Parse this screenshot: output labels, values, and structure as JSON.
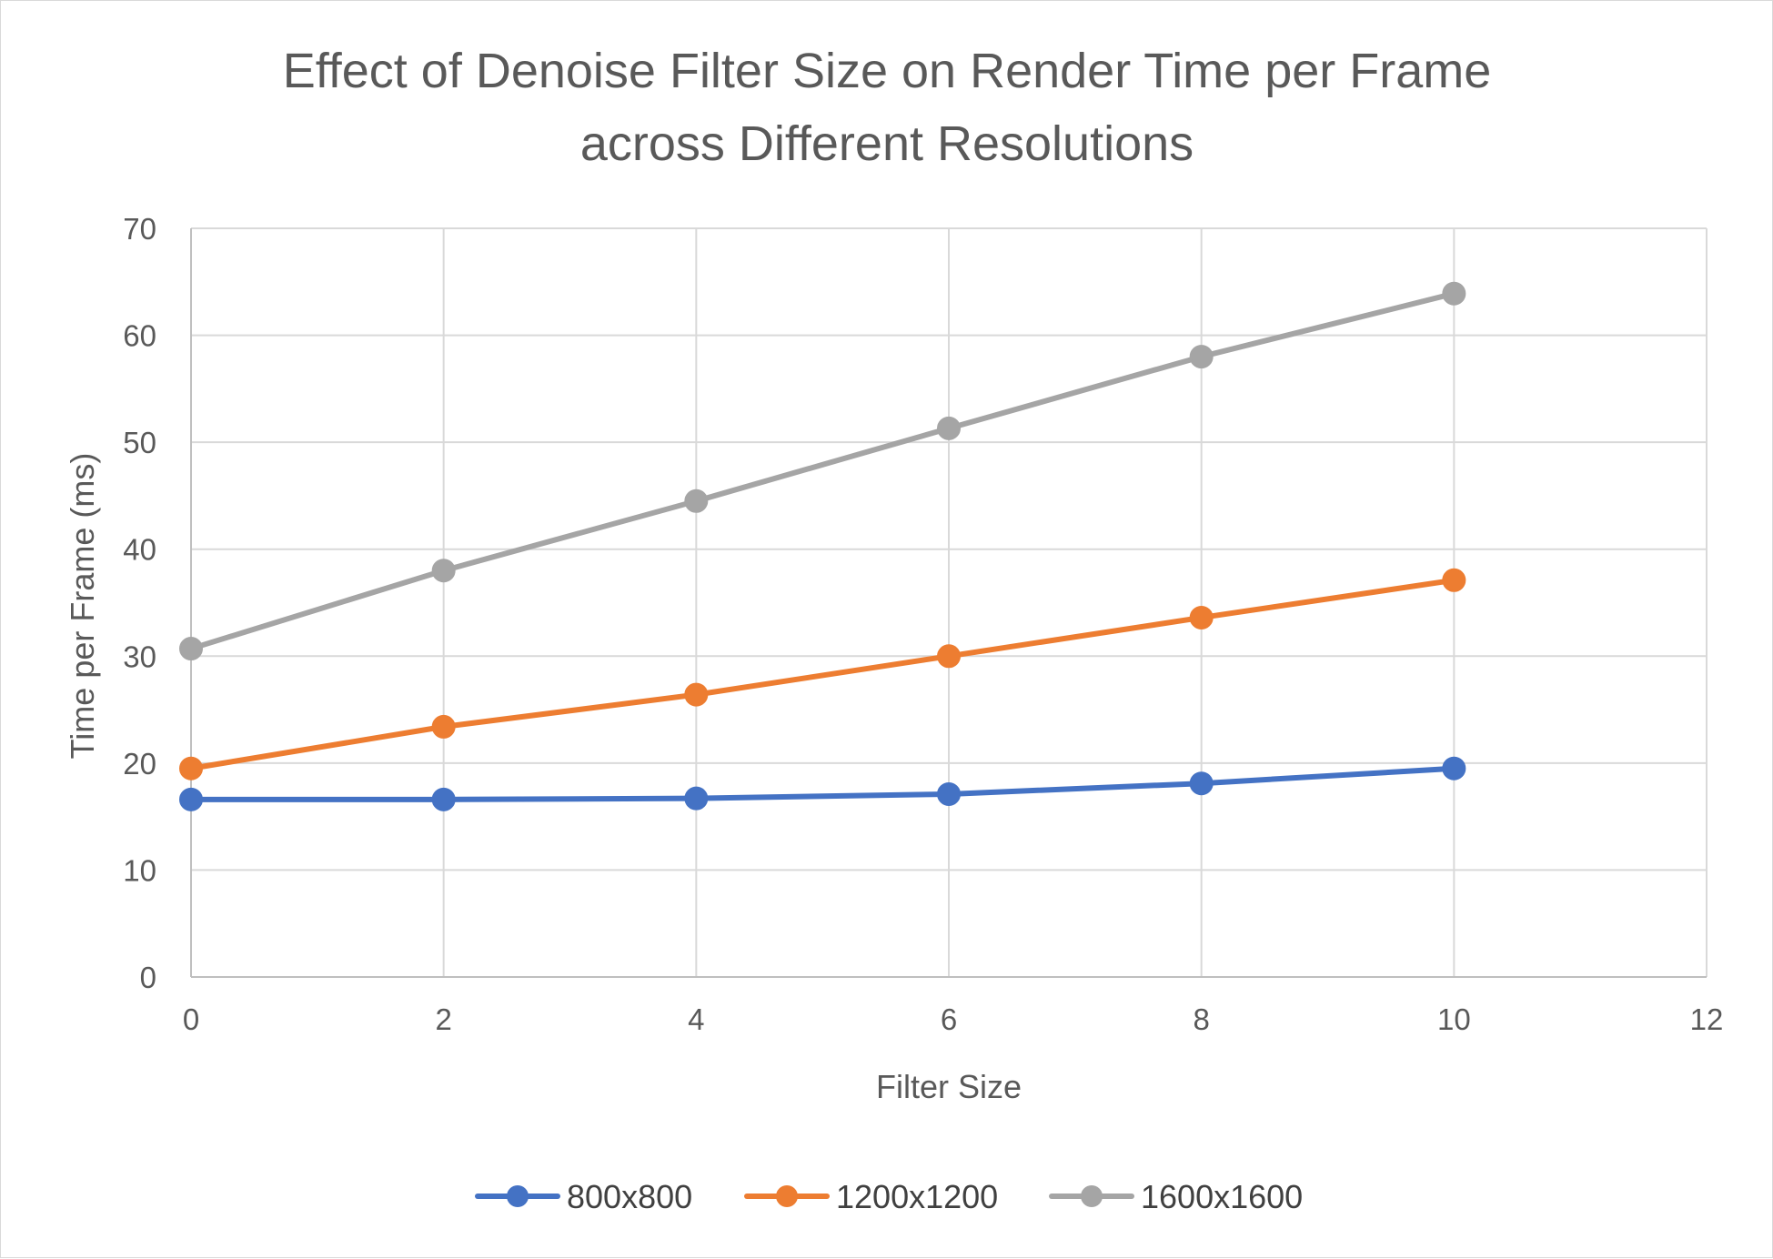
{
  "chart_data": {
    "type": "line",
    "title": "Effect of Denoise Filter Size on Render Time per Frame across Different Resolutions",
    "title_lines": [
      "Effect of Denoise Filter Size on Render Time per Frame",
      "across Different Resolutions"
    ],
    "xlabel": "Filter Size",
    "ylabel": "Time per Frame (ms)",
    "xlim": [
      0,
      12
    ],
    "ylim": [
      0,
      70
    ],
    "xticks": [
      0,
      2,
      4,
      6,
      8,
      10,
      12
    ],
    "yticks": [
      0,
      10,
      20,
      30,
      40,
      50,
      60,
      70
    ],
    "grid": true,
    "legend_position": "bottom",
    "x": [
      0,
      2,
      4,
      6,
      8,
      10
    ],
    "series": [
      {
        "name": "800x800",
        "color": "#4472C4",
        "values": [
          16.6,
          16.6,
          16.7,
          17.1,
          18.1,
          19.5
        ]
      },
      {
        "name": "1200x1200",
        "color": "#ED7D31",
        "values": [
          19.5,
          23.4,
          26.4,
          30.0,
          33.6,
          37.1
        ]
      },
      {
        "name": "1600x1600",
        "color": "#A5A5A5",
        "values": [
          30.7,
          38.0,
          44.5,
          51.3,
          58.0,
          63.9
        ]
      }
    ]
  }
}
